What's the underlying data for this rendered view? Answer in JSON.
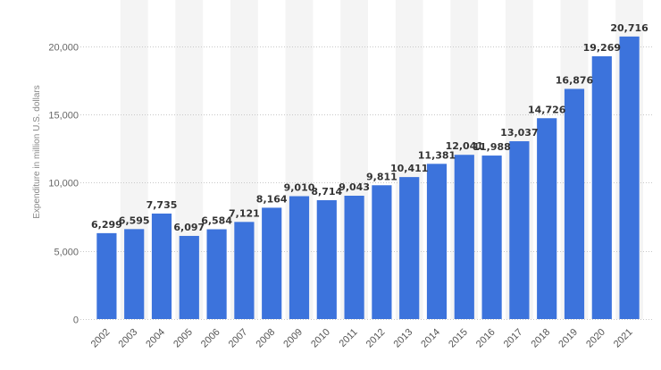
{
  "chart_data": {
    "type": "bar",
    "title": "",
    "xlabel": "",
    "ylabel": "Expenditure in million U.S. dollars",
    "categories": [
      "2002",
      "2003",
      "2004",
      "2005",
      "2006",
      "2007",
      "2008",
      "2009",
      "2010",
      "2011",
      "2012",
      "2013",
      "2014",
      "2015",
      "2016",
      "2017",
      "2018",
      "2019",
      "2020",
      "2021"
    ],
    "values": [
      6299,
      6595,
      7735,
      6097,
      6584,
      7121,
      8164,
      9010,
      8714,
      9043,
      9811,
      10411,
      11381,
      12041,
      11988,
      13037,
      14726,
      16876,
      19269,
      20716
    ],
    "value_labels": [
      "6,299",
      "6,595",
      "7,735",
      "6,097",
      "6,584",
      "7,121",
      "8,164",
      "9,010",
      "8,714",
      "9,043",
      "9,811",
      "10,411",
      "11,381",
      "12,041",
      "11,988",
      "13,037",
      "14,726",
      "16,876",
      "19,269",
      "20,716"
    ],
    "yticks": [
      0,
      5000,
      10000,
      15000,
      20000
    ],
    "ytick_labels": [
      "0",
      "5,000",
      "10,000",
      "15,000",
      "20,000"
    ],
    "ylim": [
      0,
      23000
    ],
    "grid": true,
    "bar_color": "#3c73dc",
    "band_color": "#f4f4f4"
  }
}
